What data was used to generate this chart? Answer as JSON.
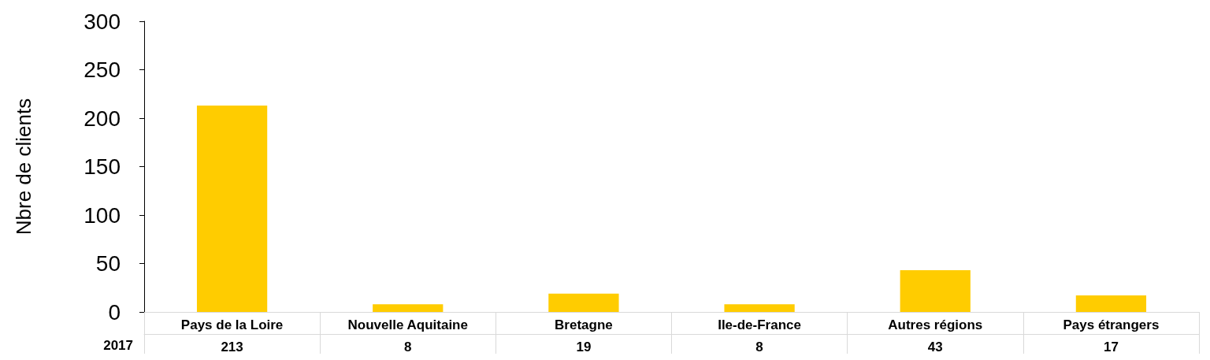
{
  "chart_data": {
    "type": "bar",
    "ylabel": "Nbre de clients",
    "categories": [
      "Pays de la Loire",
      "Nouvelle Aquitaine",
      "Bretagne",
      "Ile-de-France",
      "Autres régions",
      "Pays étrangers"
    ],
    "series": [
      {
        "name": "2017",
        "color": "#ffcc00",
        "values": [
          213,
          8,
          19,
          8,
          43,
          17
        ]
      }
    ],
    "ylim": [
      0,
      300
    ],
    "yticks": [
      0,
      50,
      100,
      150,
      200,
      250,
      300
    ],
    "data_labels": true
  }
}
